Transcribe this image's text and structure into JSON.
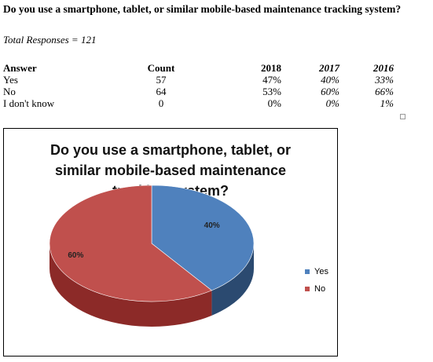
{
  "question": "Do you use a smartphone, tablet, or similar mobile-based maintenance tracking system?",
  "total_responses": "Total Responses = 121",
  "table": {
    "headers": {
      "answer": "Answer",
      "count": "Count",
      "y2018": "2018",
      "y2017": "2017",
      "y2016": "2016"
    },
    "rows": [
      {
        "answer": "Yes",
        "count": "57",
        "y2018": "47%",
        "y2017": "40%",
        "y2016": "33%"
      },
      {
        "answer": "No",
        "count": "64",
        "y2018": "53%",
        "y2017": "60%",
        "y2016": "66%"
      },
      {
        "answer": "I don't know",
        "count": "0",
        "y2018": "0%",
        "y2017": "0%",
        "y2016": "1%"
      }
    ]
  },
  "chart_data": {
    "type": "pie",
    "title_lines": [
      "Do you use a smartphone, tablet, or",
      "similar mobile-based maintenance",
      "tracking system?"
    ],
    "categories": [
      "Yes",
      "No"
    ],
    "values": [
      40,
      60
    ],
    "labels": [
      "40%",
      "60%"
    ],
    "colors": [
      "#4f81bd",
      "#c0504d"
    ],
    "side_colors": [
      "#2b4a70",
      "#8c2a28"
    ],
    "legend_position": "right",
    "style": "3d"
  }
}
